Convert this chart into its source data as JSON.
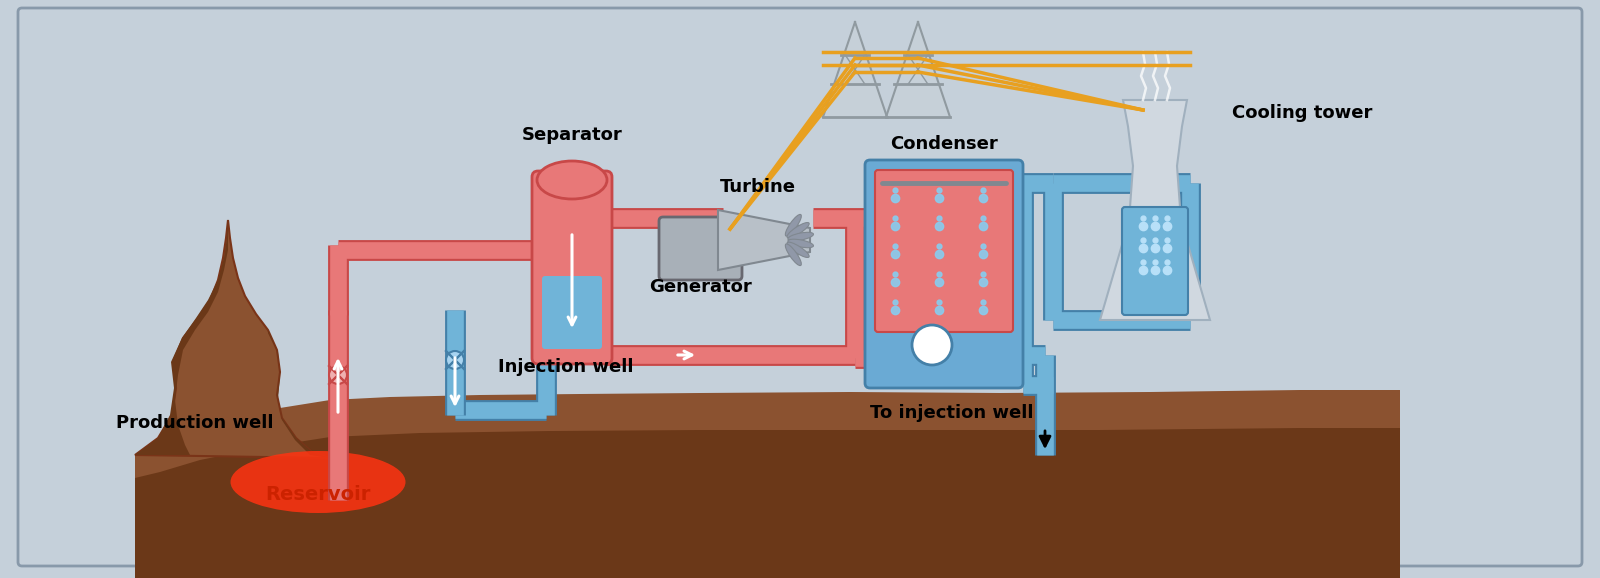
{
  "bg_color": "#C5D0DA",
  "border_color": "#8899AA",
  "ground_brown": "#8B5230",
  "ground_dark": "#6B3818",
  "reservoir_red": "#FF3311",
  "pipe_hot_fill": "#E87878",
  "pipe_hot_edge": "#C84848",
  "pipe_cold_fill": "#70B4D8",
  "pipe_cold_edge": "#4480A8",
  "sep_body": "#E87878",
  "sep_edge": "#C84848",
  "sep_inner_top": "#E87878",
  "sep_inner_bot": "#70B4D8",
  "cond_blue": "#6AAAD4",
  "cond_blue_edge": "#4480A8",
  "cond_red_inner": "#E87878",
  "pump_white": "#FFFFFF",
  "tower_gray": "#C8D0D8",
  "tower_edge": "#909AA0",
  "wire_orange": "#E8A020",
  "gen_gray": "#A8B0B8",
  "gen_edge": "#686870",
  "turb_cone": "#B8C0C8",
  "turb_edge": "#808890",
  "turb_blade": "#9098A8",
  "cooling_tower_body": "#D0D8E0",
  "cooling_tower_edge": "#A0B0BE",
  "cooling_inner": "#70B4D8",
  "drop_color": "#88CCEE",
  "text_color": "#000000",
  "reservoir_label_color": "#CC2200",
  "labels": {
    "separator": "Separator",
    "turbine": "Turbine",
    "generator": "Generator",
    "condenser": "Condenser",
    "cooling_tower": "Cooling tower",
    "production_well": "Production well",
    "injection_well": "Injection well",
    "reservoir": "Reservoir",
    "to_injection": "To injection well"
  },
  "fig_width": 16.0,
  "fig_height": 5.78,
  "dpi": 100,
  "pipe_lw": 14,
  "pipe_border_extra": 3
}
